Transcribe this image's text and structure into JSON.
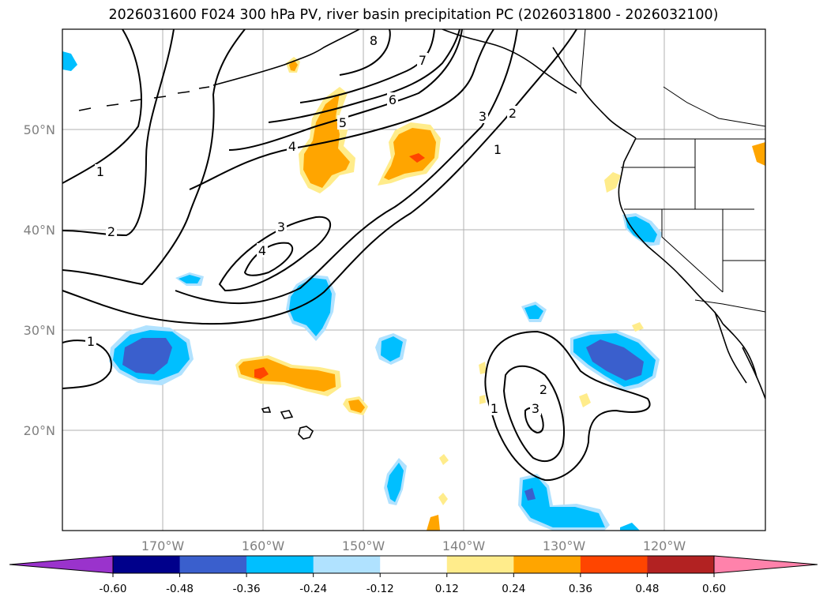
{
  "title": "2026031600 F024 300 hPa PV, river basin precipitation PC (2026031800 - 2026032100)",
  "map": {
    "lat_labels": [
      "20°N",
      "30°N",
      "40°N",
      "50°N"
    ],
    "lon_labels": [
      "170°W",
      "160°W",
      "150°W",
      "140°W",
      "130°W",
      "120°W"
    ],
    "extent": {
      "lon_min": -180,
      "lon_max": -110,
      "lat_min": 10,
      "lat_max": 60
    },
    "pv_contour_labels": [
      "1",
      "2",
      "3",
      "4",
      "5",
      "6",
      "7",
      "8"
    ],
    "gridlines": true
  },
  "colorbar": {
    "tick_labels": [
      "-0.60",
      "-0.48",
      "-0.36",
      "-0.24",
      "-0.12",
      "0.12",
      "0.24",
      "0.36",
      "0.48",
      "0.60"
    ],
    "colors": [
      "#9a33cc",
      "#00008b",
      "#3a5fcd",
      "#00bfff",
      "#b0e2ff",
      "#ffffff",
      "#ffec8b",
      "#ffa500",
      "#ff4500",
      "#b22222",
      "#ff82ab"
    ]
  }
}
